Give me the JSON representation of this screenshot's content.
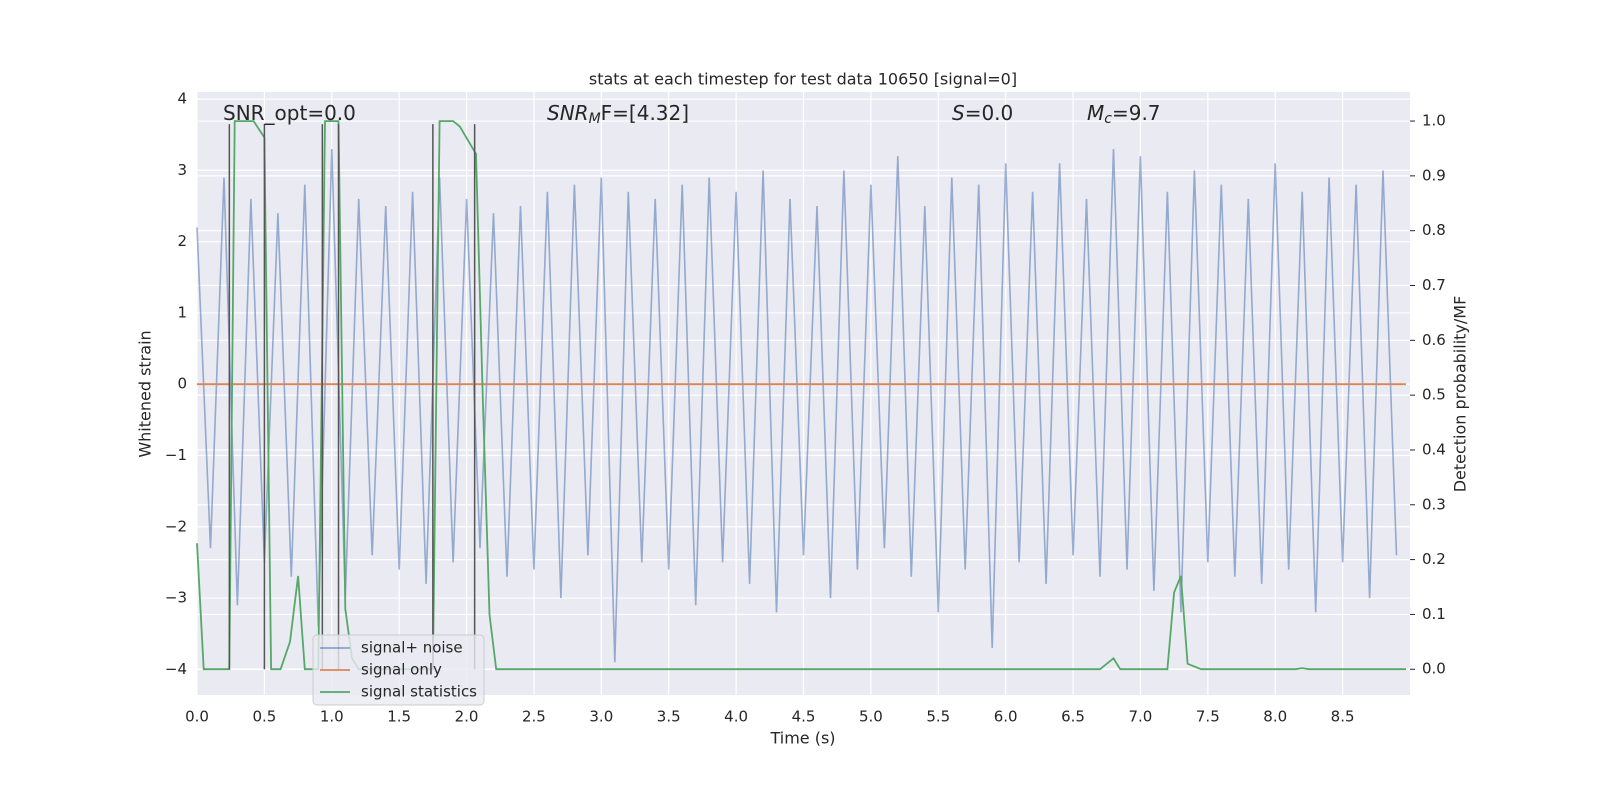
{
  "chart_data": {
    "type": "line",
    "title": "stats at each timestep for test data 10650 [signal=0]",
    "xlabel": "Time (s)",
    "ylabel": "Whitened strain",
    "y2label": "Detection probability/MF",
    "annotations": [
      {
        "base": "SNR_opt=0.0"
      },
      {
        "base": "SNR",
        "sub": "M",
        "rest": "F=[4.32]"
      },
      {
        "base": "S",
        "rest": "=0.0"
      },
      {
        "base": "M",
        "sub": "c",
        "rest": "=9.7"
      }
    ],
    "xlim": [
      0,
      9.0
    ],
    "ylim": [
      -4.36,
      4.1
    ],
    "y2lim": [
      -0.047,
      1.053
    ],
    "grid": true,
    "legend": "lower left",
    "xticks": [
      {
        "value": 0,
        "label": "0.0"
      },
      {
        "value": 0.5,
        "label": "0.5"
      },
      {
        "value": 1,
        "label": "1.0"
      },
      {
        "value": 1.5,
        "label": "1.5"
      },
      {
        "value": 2,
        "label": "2.0"
      },
      {
        "value": 2.5,
        "label": "2.5"
      },
      {
        "value": 3,
        "label": "3.0"
      },
      {
        "value": 3.5,
        "label": "3.5"
      },
      {
        "value": 4,
        "label": "4.0"
      },
      {
        "value": 4.5,
        "label": "4.5"
      },
      {
        "value": 5,
        "label": "5.0"
      },
      {
        "value": 5.5,
        "label": "5.5"
      },
      {
        "value": 6,
        "label": "6.0"
      },
      {
        "value": 6.5,
        "label": "6.5"
      },
      {
        "value": 7,
        "label": "7.0"
      },
      {
        "value": 7.5,
        "label": "7.5"
      },
      {
        "value": 8,
        "label": "8.0"
      },
      {
        "value": 8.5,
        "label": "8.5"
      }
    ],
    "yticks": [
      {
        "value": -4,
        "label": "−4"
      },
      {
        "value": -3,
        "label": "−3"
      },
      {
        "value": -2,
        "label": "−2"
      },
      {
        "value": -1,
        "label": "−1"
      },
      0,
      1,
      2,
      3,
      4
    ],
    "y2ticks": [
      {
        "value": 0,
        "label": "0.0"
      },
      {
        "value": 0.1,
        "label": "0.1"
      },
      {
        "value": 0.2,
        "label": "0.2"
      },
      {
        "value": 0.3,
        "label": "0.3"
      },
      {
        "value": 0.4,
        "label": "0.4"
      },
      {
        "value": 0.5,
        "label": "0.5"
      },
      {
        "value": 0.6,
        "label": "0.6"
      },
      {
        "value": 0.7,
        "label": "0.7"
      },
      {
        "value": 0.8,
        "label": "0.8"
      },
      {
        "value": 0.9,
        "label": "0.9"
      },
      {
        "value": 1,
        "label": "1.0"
      }
    ],
    "series": [
      {
        "name": "signal+ noise",
        "color": "#4c72b0",
        "x": [
          0,
          0.1,
          0.2,
          0.3,
          0.4,
          0.5,
          0.6,
          0.7,
          0.8,
          0.9,
          1,
          1.1,
          1.2,
          1.3,
          1.4,
          1.5,
          1.6,
          1.7,
          1.8,
          1.9,
          2,
          2.1,
          2.2,
          2.3,
          2.4,
          2.5,
          2.6,
          2.7,
          2.8,
          2.9,
          3,
          3.1,
          3.2,
          3.3,
          3.4,
          3.5,
          3.6,
          3.7,
          3.8,
          3.9,
          4,
          4.1,
          4.2,
          4.3,
          4.4,
          4.5,
          4.6,
          4.7,
          4.8,
          4.9,
          5,
          5.1,
          5.2,
          5.3,
          5.4,
          5.5,
          5.6,
          5.7,
          5.8,
          5.9,
          6,
          6.1,
          6.2,
          6.3,
          6.4,
          6.5,
          6.6,
          6.7,
          6.8,
          6.9,
          7,
          7.1,
          7.2,
          7.3,
          7.4,
          7.5,
          7.6,
          7.7,
          7.8,
          7.9,
          8,
          8.1,
          8.2,
          8.3,
          8.4,
          8.5,
          8.6,
          8.7,
          8.8,
          8.9
        ],
        "values": [
          2.2,
          -2.3,
          2.9,
          -3.1,
          2.6,
          -2.5,
          2.4,
          -2.7,
          2.8,
          -3.4,
          3.3,
          -3.0,
          2.6,
          -2.4,
          2.5,
          -2.6,
          2.7,
          -2.8,
          2.9,
          -2.5,
          2.6,
          -2.3,
          2.4,
          -2.7,
          2.5,
          -2.6,
          2.7,
          -3.0,
          2.8,
          -2.4,
          2.9,
          -3.9,
          2.7,
          -2.5,
          2.6,
          -2.6,
          2.8,
          -3.1,
          2.9,
          -2.5,
          2.7,
          -2.8,
          3.0,
          -3.2,
          2.6,
          -2.4,
          2.5,
          -3.0,
          3.0,
          -2.6,
          2.8,
          -2.3,
          3.2,
          -2.7,
          2.5,
          -3.2,
          2.9,
          -2.6,
          2.8,
          -3.7,
          3.1,
          -2.5,
          2.7,
          -2.8,
          3.1,
          -2.4,
          2.6,
          -2.7,
          3.3,
          -2.6,
          3.2,
          -2.9,
          2.7,
          -3.2,
          3.0,
          -2.5,
          2.8,
          -2.7,
          2.6,
          -2.8,
          3.1,
          -2.6,
          2.7,
          -3.2,
          2.9,
          -2.5,
          2.8,
          -3.0,
          3.0,
          -2.4
        ]
      },
      {
        "name": "signal only",
        "color": "#dd8452",
        "x": [
          0,
          8.97
        ],
        "values": [
          0,
          0
        ]
      },
      {
        "name": "signal statistics",
        "color": "#55a868",
        "axis": "y2",
        "x": [
          0,
          0.05,
          0.15,
          0.24,
          0.28,
          0.35,
          0.42,
          0.5,
          0.55,
          0.62,
          0.69,
          0.75,
          0.8,
          0.9,
          0.95,
          1.0,
          1.05,
          1.1,
          1.15,
          1.2,
          1.7,
          1.75,
          1.8,
          1.9,
          1.95,
          2.07,
          2.12,
          2.17,
          2.22,
          6.7,
          6.8,
          6.85,
          6.95,
          7.2,
          7.25,
          7.3,
          7.35,
          7.45,
          8.15,
          8.2,
          8.25,
          8.97
        ],
        "values": [
          0.23,
          0.0,
          0.0,
          0.0,
          1.0,
          1.0,
          1.0,
          0.97,
          0.0,
          0.0,
          0.05,
          0.17,
          0.0,
          0.0,
          1.0,
          1.0,
          1.0,
          0.11,
          0.02,
          0.0,
          0.0,
          0.0,
          1.0,
          1.0,
          0.99,
          0.94,
          0.5,
          0.1,
          0.0,
          0.0,
          0.02,
          0.0,
          0.0,
          0.0,
          0.14,
          0.17,
          0.01,
          0.0,
          0.0,
          0.002,
          0.0,
          0.0
        ]
      }
    ],
    "markers": {
      "color": "#555555",
      "x": [
        0.24,
        0.5,
        0.93,
        1.05,
        1.75,
        2.06
      ],
      "ymin": -4,
      "ymax": 3.65
    }
  }
}
